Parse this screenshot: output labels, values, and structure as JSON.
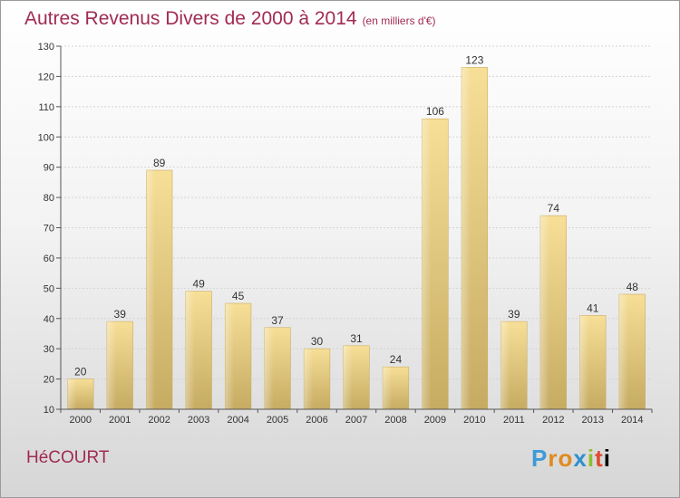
{
  "title": "Autres Revenus Divers de 2000 à 2014",
  "subtitle": "(en milliers d'€)",
  "commune": "HéCOURT",
  "logo": {
    "text": "Proxiti",
    "letters": [
      "P",
      "r",
      "o",
      "x",
      "i",
      "t",
      "i"
    ]
  },
  "colors": {
    "bar_light": "#f7df97",
    "bar_dark": "#c6ab62",
    "title": "#a12b52"
  },
  "chart_data": {
    "type": "bar",
    "categories": [
      "2000",
      "2001",
      "2002",
      "2003",
      "2004",
      "2005",
      "2006",
      "2007",
      "2008",
      "2009",
      "2010",
      "2011",
      "2012",
      "2013",
      "2014"
    ],
    "values": [
      20,
      39,
      89,
      49,
      45,
      37,
      30,
      31,
      24,
      106,
      123,
      39,
      74,
      41,
      48
    ],
    "ylim": [
      10,
      130
    ],
    "yticks": [
      10,
      20,
      30,
      40,
      50,
      60,
      70,
      80,
      90,
      100,
      110,
      120,
      130
    ],
    "grid": true
  }
}
